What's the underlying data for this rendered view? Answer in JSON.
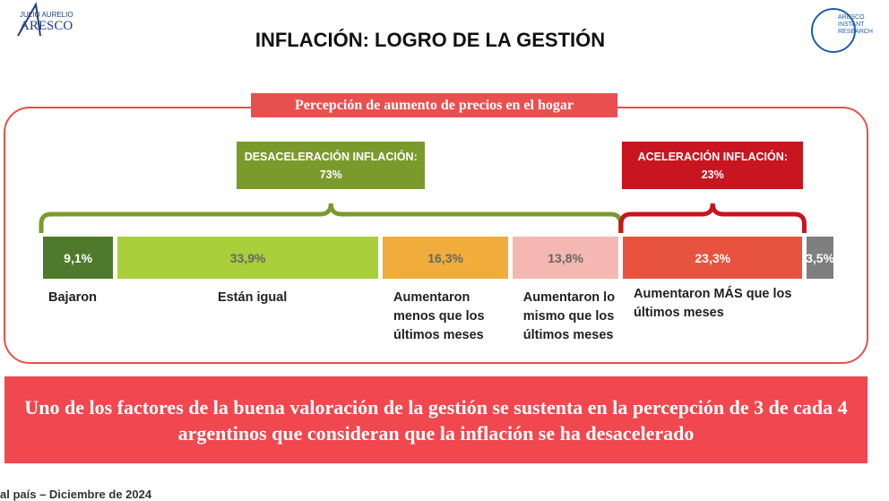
{
  "header": {
    "title": "INFLACIÓN: LOGRO DE LA GESTIÓN",
    "logo_left_small": "JULIO AURELIO",
    "logo_left": "ARESCO",
    "logo_right": "ARESCO INSTANT RESEARCH"
  },
  "chart_data": {
    "type": "stacked-bar",
    "title": "Percepción de aumento de precios en el hogar",
    "categories": [
      "Bajaron",
      "Están igual",
      "Aumentaron menos que los últimos meses",
      "Aumentaron lo mismo que los últimos meses",
      "Aumentaron MÁS que los últimos meses",
      null
    ],
    "values": [
      9.1,
      33.9,
      16.3,
      13.8,
      23.3,
      3.5
    ],
    "value_labels": [
      "9,1%",
      "33,9%",
      "16,3%",
      "13,8%",
      "23,3%",
      "3,5%"
    ],
    "colors": [
      "#4f7a2b",
      "#a9cf3b",
      "#f0ad3c",
      "#f4b7b1",
      "#e8533f",
      "#7f7f7f"
    ],
    "groups": [
      {
        "label": "DESACELERACIÓN INFLACIÓN:",
        "value": 73,
        "value_label": "73%",
        "color": "#7b9a2c"
      },
      {
        "label": "ACELERACIÓN INFLACIÓN:",
        "value": 23,
        "value_label": "23%",
        "color": "#c8151f"
      }
    ]
  },
  "banner": "Uno de los factores de la buena valoración de la gestión se sustenta en la percepción de 3 de cada 4 argentinos que consideran que la inflación se ha desacelerado",
  "footer": "al país – Diciembre de 2024"
}
